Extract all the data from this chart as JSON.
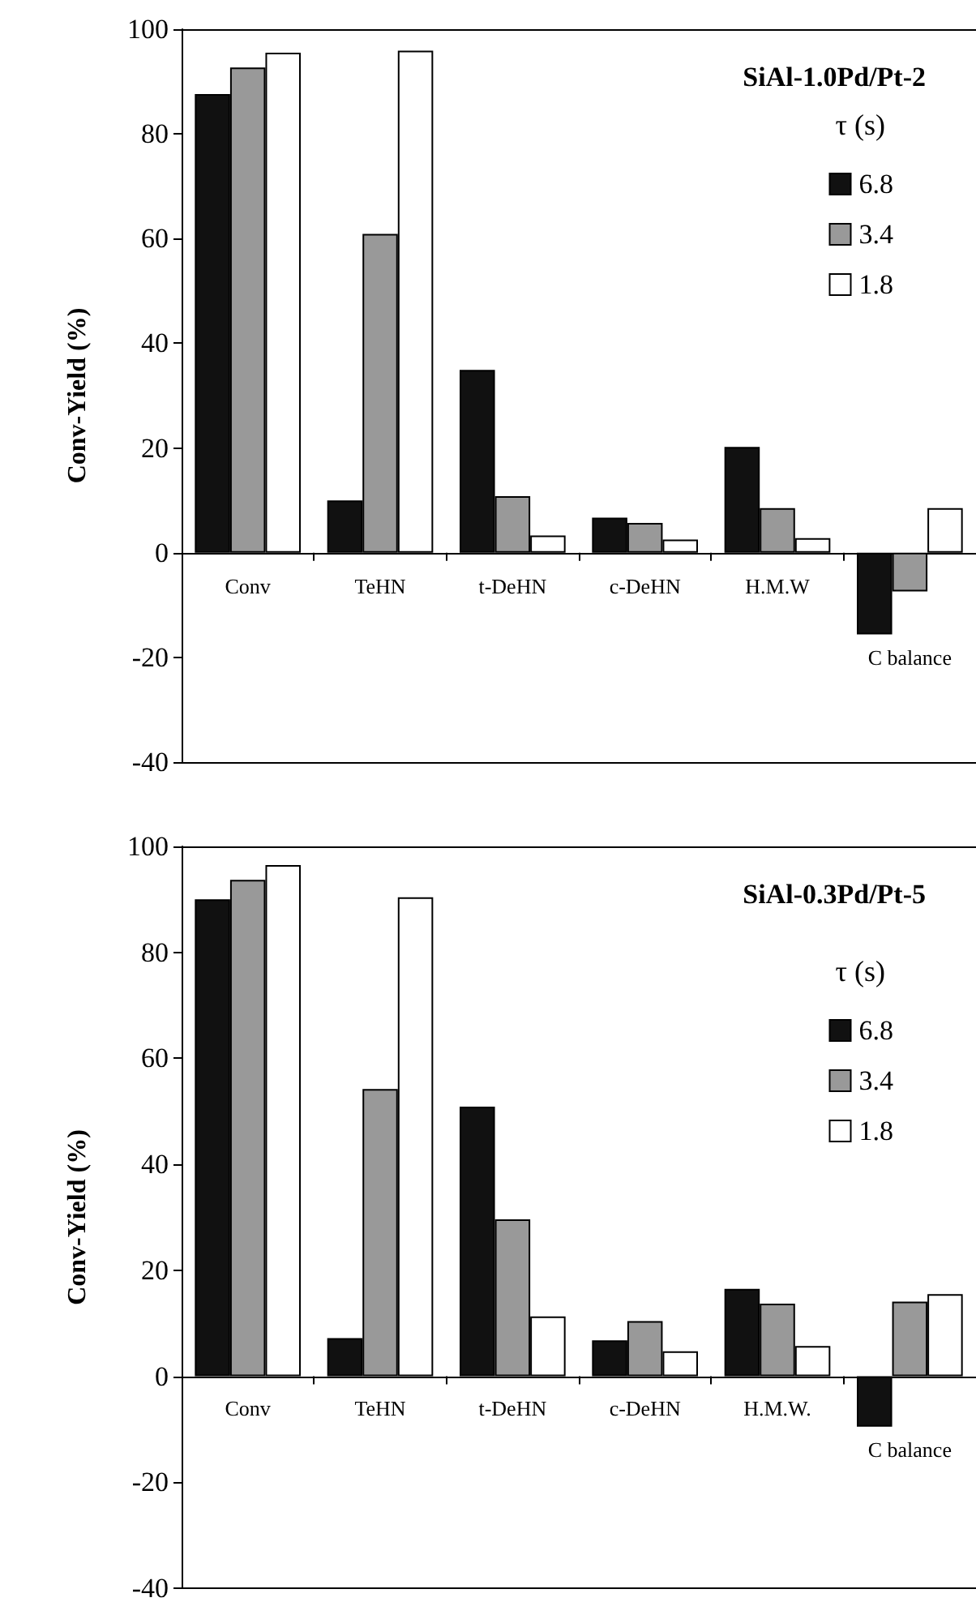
{
  "chart_data": [
    {
      "type": "bar",
      "title": "SiAl-1.0Pd/Pt-2",
      "ylabel": "Conv-Yield (%)",
      "legend_title": "τ (s)",
      "categories": [
        "Conv",
        "TeHN",
        "t-DeHN",
        "c-DeHN",
        "H.M.W",
        "C balance"
      ],
      "series": [
        {
          "name": "6.8",
          "color": "#111111",
          "values": [
            87.6,
            10,
            34.9,
            6.7,
            20.2,
            -15.6
          ]
        },
        {
          "name": "3.4",
          "color": "#999999",
          "values": [
            92.7,
            60.9,
            10.8,
            5.7,
            8.5,
            -7.4
          ]
        },
        {
          "name": "1.8",
          "color": "#ffffff",
          "values": [
            95.5,
            95.9,
            3.3,
            2.5,
            2.8,
            8.5
          ]
        }
      ],
      "ylim": [
        -40,
        100
      ],
      "yticks": [
        -40,
        -20,
        0,
        20,
        40,
        60,
        80,
        100
      ],
      "grid": false,
      "legend": "top right"
    },
    {
      "type": "bar",
      "title": "SiAl-0.3Pd/Pt-5",
      "ylabel": "Conv-Yield (%)",
      "legend_title": "τ (s)",
      "categories": [
        "Conv",
        "TeHN",
        "t-DeHN",
        "c-DeHN",
        "H.M.W.",
        "C balance"
      ],
      "series": [
        {
          "name": "6.8",
          "color": "#111111",
          "values": [
            90,
            7.2,
            50.9,
            6.8,
            16.5,
            -9.5
          ]
        },
        {
          "name": "3.4",
          "color": "#999999",
          "values": [
            93.7,
            54.2,
            29.6,
            10.4,
            13.7,
            14.1
          ]
        },
        {
          "name": "1.8",
          "color": "#ffffff",
          "values": [
            96.5,
            90.4,
            11.3,
            4.7,
            5.7,
            15.5
          ]
        }
      ],
      "ylim": [
        -40,
        100
      ],
      "yticks": [
        -40,
        -20,
        0,
        20,
        40,
        60,
        80,
        100
      ],
      "grid": false,
      "legend": "top right"
    }
  ]
}
